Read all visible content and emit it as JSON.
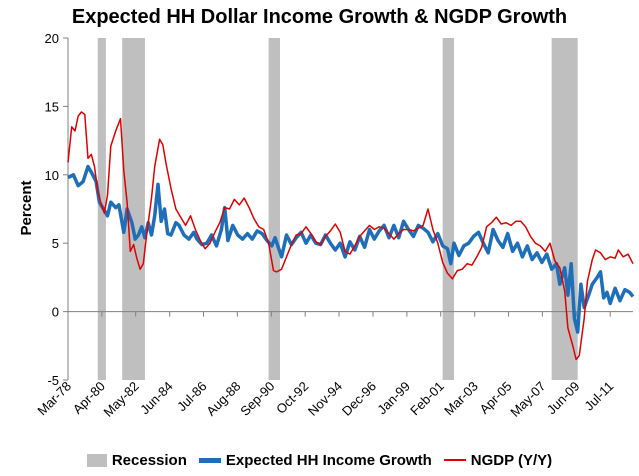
{
  "chart_data": {
    "type": "line",
    "title": "Expected HH Dollar Income Growth & NGDP Growth",
    "xlabel": "",
    "ylabel": "Percent",
    "ylim": [
      -5,
      20
    ],
    "yticks": [
      -5,
      0,
      5,
      10,
      15,
      20
    ],
    "xlim": [
      1978.17,
      2012.9
    ],
    "x_tick_labels": [
      "Mar-78",
      "Apr-80",
      "May-82",
      "Jun-84",
      "Jul-86",
      "Aug-88",
      "Sep-90",
      "Oct-92",
      "Nov-94",
      "Dec-96",
      "Jan-99",
      "Feb-01",
      "Mar-03",
      "Apr-05",
      "May-07",
      "Jun-09",
      "Jul-11"
    ],
    "x_tick_positions": [
      1978.17,
      1980.25,
      1982.33,
      1984.42,
      1986.5,
      1988.58,
      1990.67,
      1992.75,
      1994.83,
      1996.92,
      1999.0,
      2001.08,
      2003.17,
      2005.25,
      2007.33,
      2009.42,
      2011.5
    ],
    "legend": [
      "Recession",
      "Expected HH Income Growth",
      "NGDP (Y/Y)"
    ],
    "legend_position": "bottom",
    "grid": false,
    "recessions": [
      {
        "start": 1980.0,
        "end": 1980.5
      },
      {
        "start": 1981.5,
        "end": 1982.9
      },
      {
        "start": 1990.5,
        "end": 1991.2
      },
      {
        "start": 2001.2,
        "end": 2001.9
      },
      {
        "start": 2007.9,
        "end": 2009.5
      }
    ],
    "series": [
      {
        "name": "Expected HH Income Growth",
        "color": "#1f6eb9",
        "points": [
          [
            1978.17,
            9.8
          ],
          [
            1978.5,
            10.0
          ],
          [
            1978.8,
            9.2
          ],
          [
            1979.1,
            9.5
          ],
          [
            1979.4,
            10.6
          ],
          [
            1979.6,
            10.2
          ],
          [
            1979.9,
            9.5
          ],
          [
            1980.1,
            8.0
          ],
          [
            1980.4,
            7.4
          ],
          [
            1980.6,
            7.0
          ],
          [
            1980.8,
            8.0
          ],
          [
            1981.1,
            7.6
          ],
          [
            1981.3,
            7.8
          ],
          [
            1981.6,
            5.8
          ],
          [
            1981.8,
            7.5
          ],
          [
            1982.1,
            6.5
          ],
          [
            1982.3,
            5.3
          ],
          [
            1982.5,
            5.6
          ],
          [
            1982.7,
            6.2
          ],
          [
            1982.9,
            5.4
          ],
          [
            1983.1,
            6.5
          ],
          [
            1983.3,
            5.6
          ],
          [
            1983.5,
            7.0
          ],
          [
            1983.7,
            9.3
          ],
          [
            1983.9,
            6.6
          ],
          [
            1984.1,
            7.5
          ],
          [
            1984.3,
            5.7
          ],
          [
            1984.5,
            5.6
          ],
          [
            1984.8,
            6.5
          ],
          [
            1985.0,
            6.3
          ],
          [
            1985.3,
            5.6
          ],
          [
            1985.6,
            5.3
          ],
          [
            1985.9,
            5.8
          ],
          [
            1986.1,
            5.3
          ],
          [
            1986.4,
            4.9
          ],
          [
            1986.7,
            5.0
          ],
          [
            1987.0,
            5.6
          ],
          [
            1987.3,
            4.8
          ],
          [
            1987.6,
            6.0
          ],
          [
            1987.8,
            7.6
          ],
          [
            1988.0,
            5.2
          ],
          [
            1988.3,
            6.3
          ],
          [
            1988.6,
            5.6
          ],
          [
            1988.9,
            5.3
          ],
          [
            1989.2,
            5.7
          ],
          [
            1989.5,
            5.3
          ],
          [
            1989.8,
            5.9
          ],
          [
            1990.1,
            5.7
          ],
          [
            1990.4,
            5.2
          ],
          [
            1990.7,
            4.8
          ],
          [
            1990.9,
            5.4
          ],
          [
            1991.1,
            4.7
          ],
          [
            1991.3,
            4.0
          ],
          [
            1991.6,
            5.6
          ],
          [
            1991.9,
            4.9
          ],
          [
            1992.2,
            5.4
          ],
          [
            1992.5,
            5.8
          ],
          [
            1992.8,
            5.0
          ],
          [
            1993.1,
            5.6
          ],
          [
            1993.4,
            5.0
          ],
          [
            1993.7,
            4.9
          ],
          [
            1994.0,
            5.6
          ],
          [
            1994.3,
            5.0
          ],
          [
            1994.6,
            4.5
          ],
          [
            1994.9,
            5.0
          ],
          [
            1995.2,
            4.0
          ],
          [
            1995.5,
            5.1
          ],
          [
            1995.8,
            4.5
          ],
          [
            1996.1,
            5.5
          ],
          [
            1996.4,
            4.7
          ],
          [
            1996.7,
            6.0
          ],
          [
            1997.0,
            5.3
          ],
          [
            1997.3,
            5.9
          ],
          [
            1997.6,
            6.3
          ],
          [
            1997.9,
            5.4
          ],
          [
            1998.2,
            6.3
          ],
          [
            1998.5,
            5.4
          ],
          [
            1998.8,
            6.6
          ],
          [
            1999.1,
            6.0
          ],
          [
            1999.4,
            5.5
          ],
          [
            1999.7,
            6.3
          ],
          [
            2000.0,
            6.1
          ],
          [
            2000.3,
            5.8
          ],
          [
            2000.6,
            5.1
          ],
          [
            2000.9,
            5.7
          ],
          [
            2001.2,
            4.8
          ],
          [
            2001.5,
            4.6
          ],
          [
            2001.7,
            3.5
          ],
          [
            2001.9,
            5.0
          ],
          [
            2002.2,
            4.1
          ],
          [
            2002.5,
            4.8
          ],
          [
            2002.8,
            5.0
          ],
          [
            2003.1,
            5.5
          ],
          [
            2003.4,
            5.8
          ],
          [
            2003.7,
            5.0
          ],
          [
            2004.0,
            4.3
          ],
          [
            2004.3,
            6.0
          ],
          [
            2004.6,
            5.2
          ],
          [
            2004.9,
            4.7
          ],
          [
            2005.2,
            5.7
          ],
          [
            2005.5,
            4.4
          ],
          [
            2005.8,
            5.0
          ],
          [
            2006.1,
            4.0
          ],
          [
            2006.4,
            4.8
          ],
          [
            2006.7,
            3.8
          ],
          [
            2007.0,
            4.3
          ],
          [
            2007.3,
            3.6
          ],
          [
            2007.6,
            4.2
          ],
          [
            2007.9,
            3.1
          ],
          [
            2008.2,
            3.5
          ],
          [
            2008.4,
            2.0
          ],
          [
            2008.7,
            3.2
          ],
          [
            2008.9,
            1.2
          ],
          [
            2009.1,
            3.5
          ],
          [
            2009.3,
            -0.5
          ],
          [
            2009.5,
            -1.5
          ],
          [
            2009.7,
            2.0
          ],
          [
            2009.9,
            0.3
          ],
          [
            2010.2,
            1.3
          ],
          [
            2010.4,
            2.0
          ],
          [
            2010.7,
            2.5
          ],
          [
            2010.9,
            2.9
          ],
          [
            2011.1,
            1.0
          ],
          [
            2011.3,
            1.4
          ],
          [
            2011.5,
            0.6
          ],
          [
            2011.8,
            1.7
          ],
          [
            2012.1,
            0.8
          ],
          [
            2012.4,
            1.6
          ],
          [
            2012.7,
            1.4
          ],
          [
            2012.9,
            1.1
          ]
        ]
      },
      {
        "name": "NGDP (Y/Y)",
        "color": "#e00000",
        "points": [
          [
            1978.17,
            10.9
          ],
          [
            1978.4,
            13.5
          ],
          [
            1978.6,
            13.2
          ],
          [
            1978.8,
            14.3
          ],
          [
            1979.0,
            14.6
          ],
          [
            1979.2,
            14.4
          ],
          [
            1979.4,
            11.2
          ],
          [
            1979.6,
            11.5
          ],
          [
            1979.8,
            10.6
          ],
          [
            1980.0,
            8.8
          ],
          [
            1980.2,
            7.9
          ],
          [
            1980.4,
            7.2
          ],
          [
            1980.6,
            8.5
          ],
          [
            1980.8,
            12.1
          ],
          [
            1981.1,
            13.2
          ],
          [
            1981.4,
            14.1
          ],
          [
            1981.6,
            10.3
          ],
          [
            1981.8,
            8.0
          ],
          [
            1982.0,
            4.4
          ],
          [
            1982.2,
            4.9
          ],
          [
            1982.4,
            3.9
          ],
          [
            1982.6,
            3.1
          ],
          [
            1982.8,
            3.5
          ],
          [
            1983.0,
            5.6
          ],
          [
            1983.3,
            8.3
          ],
          [
            1983.5,
            10.6
          ],
          [
            1983.8,
            12.6
          ],
          [
            1984.0,
            12.2
          ],
          [
            1984.2,
            10.8
          ],
          [
            1984.5,
            9.0
          ],
          [
            1984.8,
            7.5
          ],
          [
            1985.1,
            6.9
          ],
          [
            1985.4,
            6.3
          ],
          [
            1985.7,
            7.0
          ],
          [
            1986.0,
            6.0
          ],
          [
            1986.3,
            5.2
          ],
          [
            1986.6,
            4.6
          ],
          [
            1986.9,
            5.0
          ],
          [
            1987.2,
            5.8
          ],
          [
            1987.5,
            6.5
          ],
          [
            1987.8,
            7.6
          ],
          [
            1988.1,
            7.5
          ],
          [
            1988.4,
            8.2
          ],
          [
            1988.7,
            7.8
          ],
          [
            1989.0,
            8.3
          ],
          [
            1989.3,
            7.6
          ],
          [
            1989.6,
            6.8
          ],
          [
            1989.9,
            6.2
          ],
          [
            1990.2,
            6.0
          ],
          [
            1990.5,
            5.0
          ],
          [
            1990.8,
            3.0
          ],
          [
            1991.0,
            2.9
          ],
          [
            1991.3,
            3.1
          ],
          [
            1991.6,
            4.0
          ],
          [
            1991.9,
            4.9
          ],
          [
            1992.2,
            5.6
          ],
          [
            1992.5,
            5.7
          ],
          [
            1992.8,
            6.2
          ],
          [
            1993.1,
            5.7
          ],
          [
            1993.4,
            5.1
          ],
          [
            1993.7,
            4.9
          ],
          [
            1994.0,
            5.5
          ],
          [
            1994.3,
            5.9
          ],
          [
            1994.6,
            6.4
          ],
          [
            1994.9,
            5.8
          ],
          [
            1995.2,
            4.4
          ],
          [
            1995.5,
            4.2
          ],
          [
            1995.8,
            4.8
          ],
          [
            1996.1,
            5.5
          ],
          [
            1996.4,
            5.9
          ],
          [
            1996.7,
            6.3
          ],
          [
            1997.0,
            6.0
          ],
          [
            1997.3,
            6.2
          ],
          [
            1997.6,
            6.1
          ],
          [
            1997.9,
            5.7
          ],
          [
            1998.2,
            5.3
          ],
          [
            1998.5,
            5.7
          ],
          [
            1998.8,
            6.0
          ],
          [
            1999.1,
            6.0
          ],
          [
            1999.4,
            5.9
          ],
          [
            1999.7,
            6.1
          ],
          [
            2000.0,
            6.3
          ],
          [
            2000.3,
            7.5
          ],
          [
            2000.6,
            6.0
          ],
          [
            2000.9,
            5.0
          ],
          [
            2001.2,
            3.6
          ],
          [
            2001.5,
            2.8
          ],
          [
            2001.8,
            2.4
          ],
          [
            2002.1,
            3.0
          ],
          [
            2002.4,
            3.1
          ],
          [
            2002.7,
            3.5
          ],
          [
            2003.0,
            3.4
          ],
          [
            2003.3,
            4.0
          ],
          [
            2003.6,
            4.7
          ],
          [
            2003.9,
            6.2
          ],
          [
            2004.2,
            6.5
          ],
          [
            2004.5,
            6.9
          ],
          [
            2004.8,
            6.4
          ],
          [
            2005.1,
            6.5
          ],
          [
            2005.4,
            6.3
          ],
          [
            2005.7,
            6.6
          ],
          [
            2006.0,
            6.6
          ],
          [
            2006.3,
            6.2
          ],
          [
            2006.6,
            5.5
          ],
          [
            2006.9,
            5.0
          ],
          [
            2007.2,
            4.8
          ],
          [
            2007.5,
            4.4
          ],
          [
            2007.8,
            5.0
          ],
          [
            2008.1,
            3.7
          ],
          [
            2008.4,
            3.2
          ],
          [
            2008.7,
            1.5
          ],
          [
            2008.9,
            -1.2
          ],
          [
            2009.2,
            -2.5
          ],
          [
            2009.4,
            -3.5
          ],
          [
            2009.6,
            -3.2
          ],
          [
            2009.9,
            -0.5
          ],
          [
            2010.1,
            2.2
          ],
          [
            2010.4,
            3.8
          ],
          [
            2010.6,
            4.5
          ],
          [
            2010.9,
            4.3
          ],
          [
            2011.2,
            3.8
          ],
          [
            2011.5,
            4.0
          ],
          [
            2011.8,
            3.9
          ],
          [
            2012.0,
            4.5
          ],
          [
            2012.3,
            4.0
          ],
          [
            2012.6,
            4.2
          ],
          [
            2012.9,
            3.5
          ]
        ]
      }
    ]
  }
}
